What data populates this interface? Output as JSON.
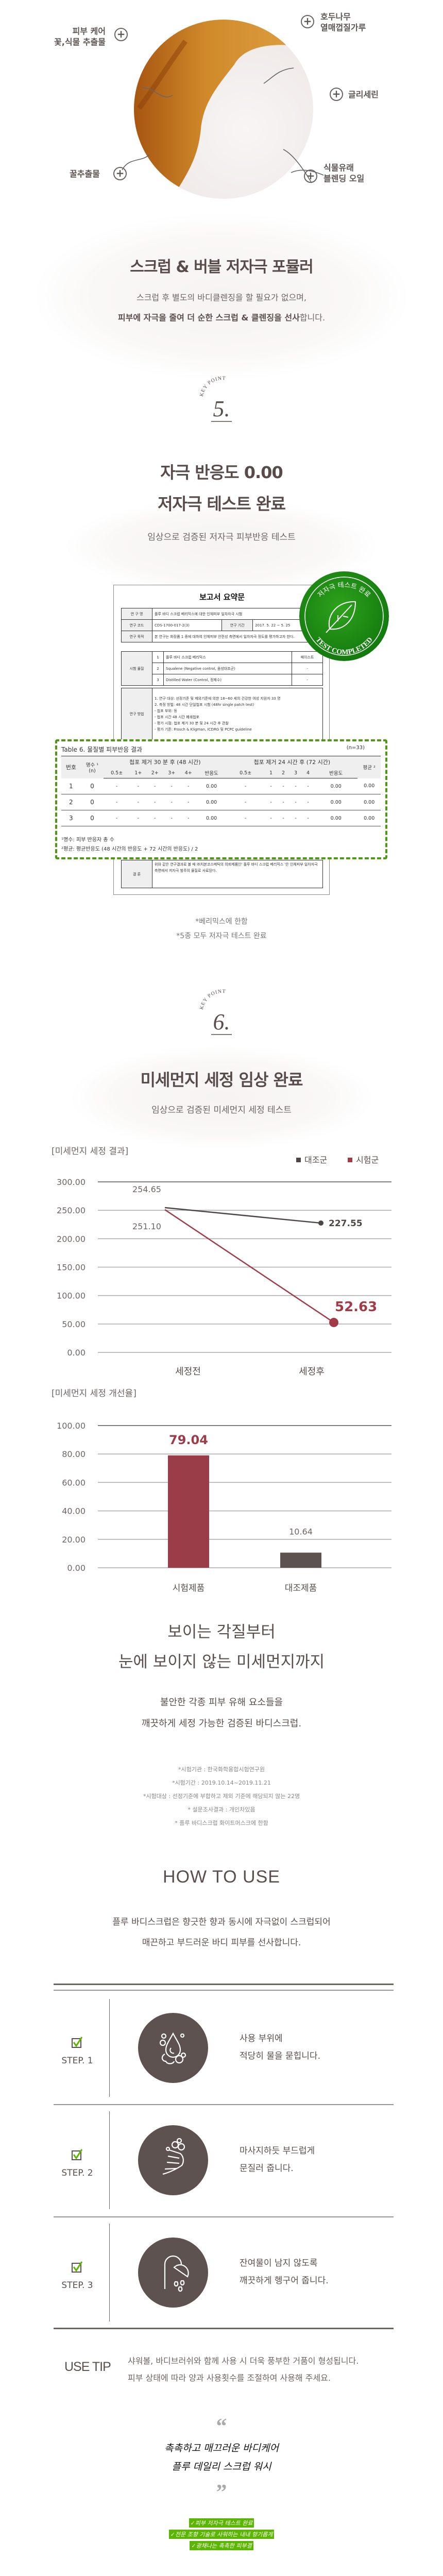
{
  "ingredients": {
    "skin_care_1": "피부 케어",
    "skin_care_2": "꽃,식물 추출물",
    "walnut_1": "호두나무",
    "walnut_2": "열매껍질가루",
    "glycerin": "글리세린",
    "honey": "꿀추출물",
    "oil_1": "식물유래",
    "oil_2": "블렌딩 오일",
    "plus_symbol": "+"
  },
  "formula": {
    "title": "스크럽 & 버블 저자극 포뮬러",
    "line1": "스크럽 후 별도의 바디클렌징을 할 필요가 없으며,",
    "line2_bold": "피부에 자극을 줄여 더 순한 스크럽 & 클렌징을 선사",
    "line2_rest": "합니다."
  },
  "keypoint5": {
    "label": "KEY POINT",
    "number": "5."
  },
  "irritation": {
    "title1": "자극 반응도 0.00",
    "title2": "저자극 테스트 완료",
    "subtitle": "임상으로 검증된 저자극 피부반응 테스트"
  },
  "report": {
    "title": "보고서 요약문",
    "study_name_label": "연 구 명",
    "study_name": "플루 바디 스크럽 베리믹스에 대한 인체피부 일차자극 시험",
    "code_label": "연구 코드",
    "code": "CDS-1700-017-2(3)",
    "period_label": "연구 기간",
    "period": "2017. 5. 22 ~ 5. 25",
    "purpose_label": "연구 목적",
    "purpose": "본 연구는 화장품 1 종에 대하여 인체피부 안전성 측면에서 일차자극 정도를 평가하고자 한다.",
    "materials_label": "시험 물질",
    "form_header": "페이스트",
    "materials": [
      {
        "no": "1",
        "name": "플루 바디 스크럽 베리믹스",
        "form": ""
      },
      {
        "no": "2",
        "name": "Squalene (Negative control, 음성대조군)",
        "form": "-"
      },
      {
        "no": "3",
        "name": "Distilled Water (Control, 정제수)",
        "form": "-"
      }
    ],
    "method_label": "연구 방법",
    "methods": [
      "1. 연구 대상: 선정기준 및 제외기준에 의한 18~60 세의 건강한 여성 지원자 33 명",
      "2. 측정 방법: 48 시간 단일첩포 시험 (48hr single patch test)",
      "- 첩포 부위: 등",
      "- 첩포 시간 48 시간 폐쇄첩포",
      "- 평가 시점: 첩포 제거 30 분 및 24 시간 후 관찰",
      "- 평가 기준: Frosch & Kligman, ICDRG 및 PCPC guideline"
    ],
    "conclusion_label": "결 론",
    "conclusion": "위와 같은 연구결과로 볼 때 ㈜치본코스메틱의 의뢰제품인' 플루 바디 스크럽 베리믹스 '은 인체피부 일차자극 측면에서 저자극 범주의 물질로 사료된다.",
    "stamp_top": "저자극 테스트 완료",
    "stamp_bottom": "TEST COMPLETED",
    "stamp_color": "#1d8a12"
  },
  "table6": {
    "title": "Table 6. 물질별 피부반응 결과",
    "n": "(n=33)",
    "col_no": "번호",
    "col_count": "명수 ¹",
    "col_count_sub": "(n)",
    "group1": "첩포 제거 30 분 후 (48 시간)",
    "group2": "첩포 제거 24 시간 후 (72 시간)",
    "col_avg": "평균 ²",
    "sub1": [
      "0.5±",
      "1+",
      "2+",
      "3+",
      "4+",
      "반응도"
    ],
    "sub2": [
      "0.5±",
      "1",
      "2",
      "3",
      "4",
      "반응도"
    ],
    "rows": [
      [
        "1",
        "0",
        "-",
        "-",
        "-",
        "-",
        "-",
        "0.00",
        "-",
        "-",
        "-",
        "-",
        "-",
        "0.00",
        "0.00"
      ],
      [
        "2",
        "0",
        "-",
        "-",
        "-",
        "-",
        "-",
        "0.00",
        "-",
        "-",
        "-",
        "-",
        "-",
        "0.00",
        "0.00"
      ],
      [
        "3",
        "0",
        "-",
        "-",
        "-",
        "-",
        "-",
        "0.00",
        "-",
        "-",
        "-",
        "-",
        "-",
        "0.00",
        "0.00"
      ]
    ],
    "footnote1": "¹명수: 피부 반응자 총 수",
    "footnote2": "²평균: 평균반응도 (48 시간의 반응도 + 72 시간의 반응도) / 2",
    "border_color": "#4d9a12"
  },
  "irritation_notes": {
    "note1": "*베리믹스에 한함",
    "note2": "*5종 모두 저자극 테스트 완료"
  },
  "keypoint6": {
    "label": "KEY POINT",
    "number": "6."
  },
  "dust": {
    "title": "미세먼지 세정 임상 완료",
    "subtitle": "임상으로 검증된 미세먼지 세정 테스트"
  },
  "chart_data": [
    {
      "type": "line",
      "title": "[미세먼지 세정 결과]",
      "categories": [
        "세정전",
        "세정후"
      ],
      "ylim": [
        0,
        300
      ],
      "yticks": [
        "0.00",
        "50.00",
        "100.00",
        "150.00",
        "200.00",
        "250.00",
        "300.00"
      ],
      "grid": true,
      "legend": "top-right",
      "series": [
        {
          "name": "대조군",
          "values": [
            254.65,
            227.55
          ],
          "labels": [
            "254.65",
            "227.55"
          ],
          "color": "#4e4644"
        },
        {
          "name": "시험군",
          "values": [
            251.1,
            52.63
          ],
          "labels": [
            "251.10",
            "52.63"
          ],
          "color": "#a33a47"
        }
      ]
    },
    {
      "type": "bar",
      "title": "[미세먼지 세정 개선율]",
      "categories": [
        "시험제품",
        "대조제품"
      ],
      "values": [
        79.04,
        10.64
      ],
      "labels": [
        "79.04",
        "10.64"
      ],
      "colors": [
        "#9b3d48",
        "#5d5250"
      ],
      "ylim": [
        0,
        100
      ],
      "yticks": [
        "0.00",
        "20.00",
        "40.00",
        "60.00",
        "80.00",
        "100.00"
      ],
      "grid": true
    }
  ],
  "visible": {
    "title1": "보이는 각질부터",
    "title2": "눈에 보이지 않는 미세먼지까지",
    "desc1": "불안한 각종 피부 유해 요소들을",
    "desc2": "깨끗하게 세정 가능한 검증된 바디스크럽.",
    "notes": [
      "*시험기관 : 한국화학융합시험연구원",
      "*시험기간 : 2019.10.14~2019.11.21",
      "*시험대상 : 선정기준에 부합하고 제외 기준에 해당되지 않는 22명",
      "* 설문조사결과 : 개인차있음",
      "* 플루 바디스크럽 화이트머스크에 한함"
    ]
  },
  "how_to_use": {
    "title": "HOW TO USE",
    "desc1": "플루 바디스크럽은 향긋한 향과 동시에 자극없이 스크럽되어",
    "desc2": "매끈하고 부드러운 바디 피부를 선사합니다.",
    "steps": [
      {
        "label": "STEP. 1",
        "icon": "water-drop-bubbles-icon",
        "line1": "사용 부위에",
        "line2": "적당히 물을 묻힙니다."
      },
      {
        "label": "STEP. 2",
        "icon": "hand-lather-icon",
        "line1": "마사지하듯 부드럽게",
        "line2": "문질러 줍니다."
      },
      {
        "label": "STEP. 3",
        "icon": "shower-icon",
        "line1": "잔여물이 남지 않도록",
        "line2": "깨끗하게 헹구어 줍니다."
      }
    ],
    "check_color": "#5bb600"
  },
  "use_tip": {
    "label": "USE TIP",
    "line1": "샤워볼, 바디브러쉬와 함께 사용 시 더욱 풍부한 거품이 형성됩니다.",
    "line2": "피부 상태에 따라 양과 사용횟수를 조절하여 사용해 주세요."
  },
  "quote": {
    "open": "“",
    "line1": "촉촉하고 매끄러운 바디케어",
    "line2": "플루 데일리 스크럽 워시",
    "close": "”"
  },
  "tags": [
    "✓피부 저자극 테스트 완료",
    "✓전문 조향 기술로 사워하는 내내 향기롭게",
    "✓광채나는 촉촉한 피부결"
  ],
  "tag_color": "#5bb600"
}
